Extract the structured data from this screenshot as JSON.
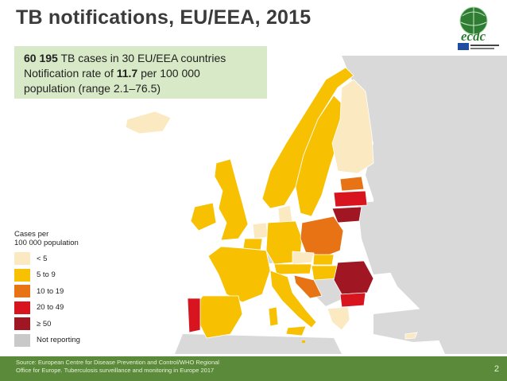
{
  "slide": {
    "title": "TB notifications, EU/EEA, 2015",
    "page_number": "2"
  },
  "logo": {
    "text": "ecdc"
  },
  "info_box": {
    "cases_number": "60 195",
    "cases_rest": " TB cases in 30 EU/EEA countries",
    "rate_prefix": "Notification rate of ",
    "rate_value": "11.7",
    "rate_suffix": " per 100 000",
    "range_line": "population (range 2.1–76.5)"
  },
  "legend": {
    "title_line1": "Cases per",
    "title_line2": "100 000 population",
    "items": [
      {
        "label": "< 5",
        "color": "#fbe9c1"
      },
      {
        "label": "5 to 9",
        "color": "#f7c000"
      },
      {
        "label": "10 to 19",
        "color": "#e77315"
      },
      {
        "label": "20 to 49",
        "color": "#d8151f"
      },
      {
        "label": "≥ 50",
        "color": "#a01622"
      },
      {
        "label": "Not reporting",
        "color": "#c9c9c9"
      }
    ]
  },
  "map": {
    "colors": {
      "background_land": "#d9d9d9",
      "sea": "#ffffff",
      "lt5": "#fbe9c1",
      "5to9": "#f7c000",
      "10to19": "#e77315",
      "20to49": "#d8151f",
      "ge50": "#a01622",
      "not_reporting": "#c9c9c9"
    }
  },
  "footer": {
    "source_line1": "Source: European Centre for Disease Prevention and Control/WHO Regional",
    "source_line2": "Office for Europe. Tuberculosis surveillance and monitoring in Europe 2017"
  }
}
